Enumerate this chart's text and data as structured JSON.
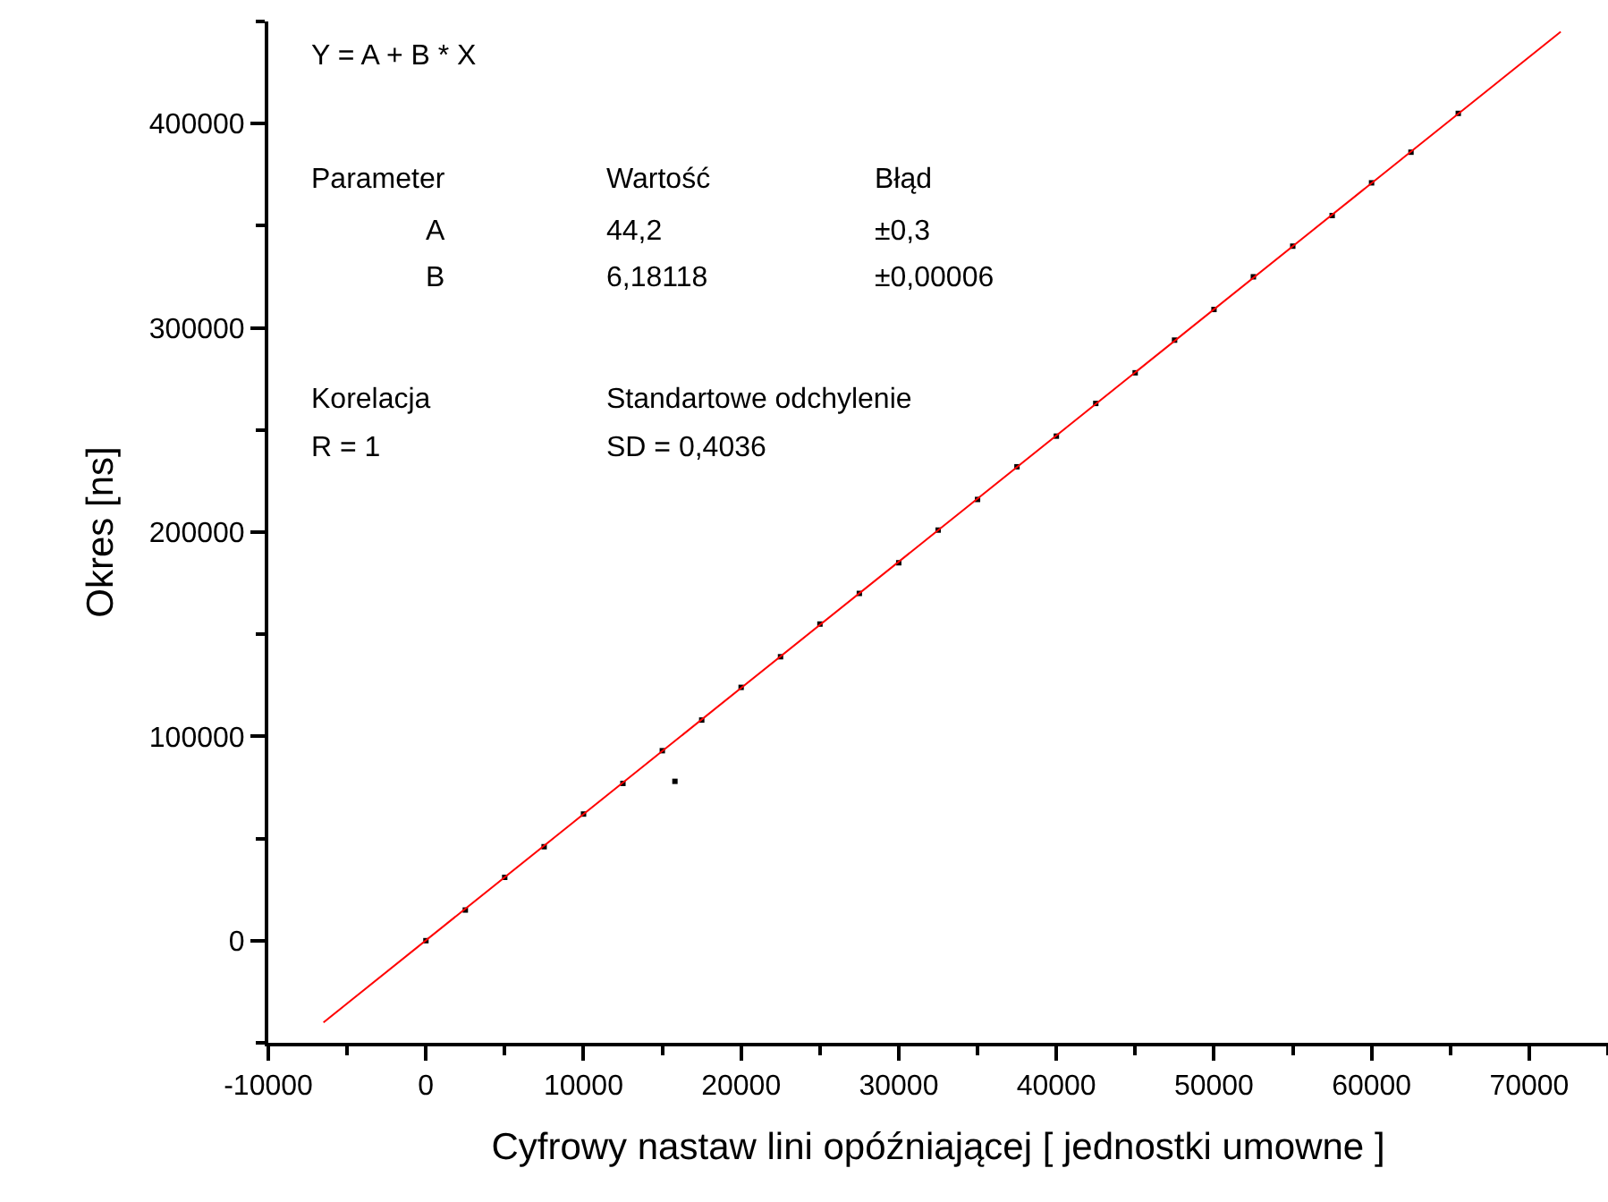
{
  "chart_data": {
    "type": "scatter",
    "xlabel": "Cyfrowy nastaw lini opóźniającej [ jednostki umowne ]",
    "ylabel": "Okres [ns]",
    "xlim": [
      -10000,
      75000
    ],
    "xticks": [
      -10000,
      0,
      10000,
      20000,
      30000,
      40000,
      50000,
      60000,
      70000
    ],
    "ylim": [
      -50000,
      450000
    ],
    "yticks": [
      0,
      100000,
      200000,
      300000,
      400000
    ],
    "grid": false,
    "marker": "square",
    "series": [
      {
        "color": "#000000",
        "x": [
          0,
          2500,
          5000,
          7500,
          10000,
          12500,
          15000,
          15800,
          17500,
          20000,
          22500,
          25000,
          27500,
          30000,
          32500,
          35000,
          37500,
          40000,
          42500,
          45000,
          47500,
          50000,
          52500,
          55000,
          57500,
          60000,
          62500,
          65500
        ],
        "values": [
          0,
          15000,
          31000,
          46000,
          62000,
          77000,
          93000,
          78000,
          108000,
          124000,
          139000,
          155000,
          170000,
          185000,
          201000,
          216000,
          232000,
          247000,
          263000,
          278000,
          294000,
          309000,
          325000,
          340000,
          355000,
          371000,
          386000,
          405000
        ]
      },
      {
        "type": "line",
        "color": "#ff0000",
        "line_style": "solid",
        "marker": "none",
        "x": [
          -6500,
          72000
        ],
        "values": [
          -40000,
          445000
        ]
      }
    ],
    "annotations": [
      "Y = A + B * X",
      "Parameter",
      "Wartość",
      "Błąd",
      "A",
      "44,2",
      "±0,3",
      "B",
      "6,18118",
      "±0,00006",
      "Korelacja",
      "Standartowe odchylenie",
      "R = 1",
      "SD = 0,4036"
    ]
  }
}
